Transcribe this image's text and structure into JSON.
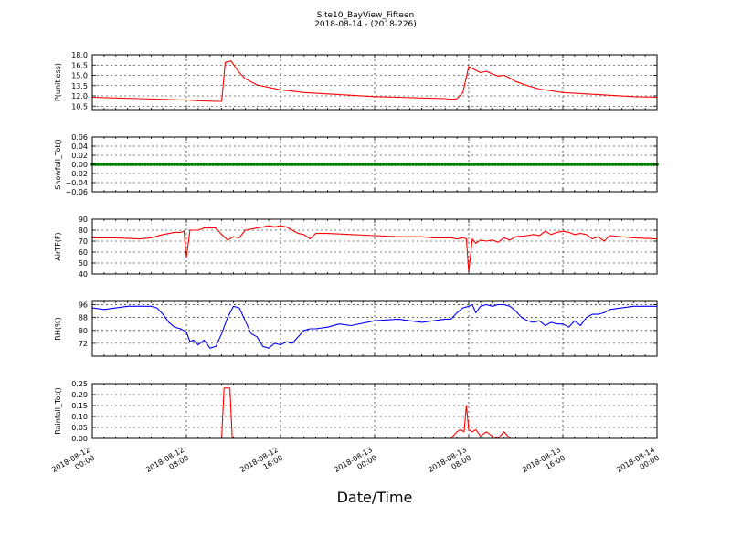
{
  "figure": {
    "title": "Site10_BayView_Fifteen",
    "subtitle": "2018-08-14 - (2018-226)",
    "xlabel": "Date/Time"
  },
  "chart_data": {
    "type": "line",
    "x_axis": {
      "start": "2018-08-12 00:00",
      "end": "2018-08-14 00:00",
      "range_hours": [
        0,
        48
      ],
      "ticks": [
        {
          "hour": 0,
          "label": [
            "2018-08-12",
            "00:00"
          ]
        },
        {
          "hour": 8,
          "label": [
            "2018-08-12",
            "08:00"
          ]
        },
        {
          "hour": 16,
          "label": [
            "2018-08-12",
            "16:00"
          ]
        },
        {
          "hour": 24,
          "label": [
            "2018-08-13",
            "00:00"
          ]
        },
        {
          "hour": 32,
          "label": [
            "2018-08-13",
            "08:00"
          ]
        },
        {
          "hour": 40,
          "label": [
            "2018-08-13",
            "16:00"
          ]
        },
        {
          "hour": 48,
          "label": [
            "2018-08-14",
            "00:00"
          ]
        }
      ]
    },
    "grid": true,
    "panels": [
      {
        "ylabel": "P(unitless)",
        "ylim": [
          10.0,
          18.0
        ],
        "yticks": [
          10.5,
          12.0,
          13.5,
          15.0,
          16.5,
          18.0
        ],
        "ytick_labels": [
          "10.5",
          "12.0",
          "13.5",
          "15.0",
          "16.5",
          "18.0"
        ],
        "color": "#ff0000",
        "series": [
          {
            "x": [
              0,
              2,
              4,
              6,
              8,
              9,
              10.5,
              11,
              11.3,
              11.8,
              12.4,
              13,
              14,
              16,
              18,
              20,
              22,
              24,
              26,
              28,
              30,
              30.5,
              31,
              31.5,
              32,
              32.3,
              33,
              33.5,
              34,
              34.5,
              35,
              35.5,
              36,
              37,
              38,
              40,
              42,
              44,
              46,
              48
            ],
            "y": [
              11.8,
              11.7,
              11.6,
              11.5,
              11.4,
              11.3,
              11.2,
              11.2,
              16.9,
              17.1,
              15.6,
              14.5,
              13.6,
              12.9,
              12.5,
              12.3,
              12.1,
              11.9,
              11.8,
              11.7,
              11.6,
              11.5,
              11.6,
              12.5,
              16.3,
              16.0,
              15.4,
              15.6,
              15.2,
              14.9,
              15.0,
              14.6,
              14.1,
              13.5,
              13.0,
              12.5,
              12.3,
              12.1,
              11.9,
              11.8
            ]
          }
        ]
      },
      {
        "ylabel": "Snowfall_Tot()",
        "ylim": [
          -0.06,
          0.06
        ],
        "yticks": [
          -0.06,
          -0.04,
          -0.02,
          0.0,
          0.02,
          0.04,
          0.06
        ],
        "ytick_labels": [
          "−0.06",
          "−0.04",
          "−0.02",
          "0.00",
          "0.02",
          "0.04",
          "0.06"
        ],
        "color": "#008000",
        "constant_value": 0.0
      },
      {
        "ylabel": "AirTF(F)",
        "ylim": [
          40,
          90
        ],
        "yticks": [
          40,
          50,
          60,
          70,
          80,
          90
        ],
        "ytick_labels": [
          "40",
          "50",
          "60",
          "70",
          "80",
          "90"
        ],
        "color": "#ff0000",
        "series": [
          {
            "x": [
              0,
              2,
              4,
              5,
              6,
              7,
              7.5,
              7.8,
              8.0,
              8.3,
              8.7,
              9,
              9.5,
              10,
              10.5,
              11,
              11.5,
              12,
              12.5,
              13,
              13.5,
              14,
              14.5,
              15,
              15.5,
              16,
              16.5,
              17,
              17.5,
              18,
              18.5,
              19,
              20,
              22,
              24,
              26,
              28,
              29,
              30,
              30.5,
              31,
              31.5,
              31.8,
              32.0,
              32.3,
              32.6,
              33,
              33.5,
              34,
              34.5,
              35,
              35.5,
              36,
              37,
              37.5,
              38,
              38.5,
              39,
              39.5,
              40,
              40.5,
              41,
              41.5,
              42,
              42.5,
              43,
              43.5,
              44,
              46,
              48
            ],
            "y": [
              73,
              73,
              72,
              73,
              76,
              78,
              78,
              79,
              55,
              80,
              80,
              80,
              82,
              82,
              82,
              76,
              71,
              74,
              73,
              80,
              81,
              82,
              83,
              84,
              83,
              84,
              83,
              80,
              77,
              76,
              72,
              77,
              77,
              76,
              75,
              74,
              74,
              73,
              73,
              73,
              72,
              73,
              72,
              42,
              72,
              68,
              71,
              70,
              71,
              69,
              73,
              71,
              74,
              75,
              76,
              75,
              79,
              76,
              78,
              79,
              78,
              76,
              77,
              76,
              72,
              74,
              70,
              75,
              73,
              72
            ]
          }
        ]
      },
      {
        "ylabel": "RH(%)",
        "ylim": [
          64,
          98
        ],
        "yticks": [
          72,
          80,
          88,
          96
        ],
        "ytick_labels": [
          "72",
          "80",
          "88",
          "96"
        ],
        "color": "#0000ff",
        "series": [
          {
            "x": [
              0,
              1,
              2,
              3,
              4,
              4.5,
              5,
              5.5,
              6,
              6.5,
              7,
              7.5,
              8,
              8.3,
              8.6,
              9,
              9.5,
              10,
              10.5,
              11,
              11.5,
              12,
              12.5,
              13,
              13.5,
              14,
              14.5,
              15,
              15.5,
              16,
              16.5,
              17,
              17.5,
              18,
              18.5,
              19,
              20,
              21,
              22,
              24,
              26,
              28,
              29,
              30,
              30.5,
              31,
              31.5,
              32,
              32.3,
              32.6,
              33,
              33.5,
              34,
              34.5,
              35,
              35.5,
              36,
              36.5,
              37,
              37.5,
              38,
              38.5,
              39,
              39.5,
              40,
              40.5,
              41,
              41.5,
              42,
              42.5,
              43,
              43.5,
              44,
              45,
              46,
              47,
              48
            ],
            "y": [
              94,
              93,
              94,
              95,
              95,
              95,
              95,
              94,
              90,
              85,
              82,
              81,
              79,
              73,
              74,
              71,
              74,
              69,
              70,
              78,
              88,
              95,
              94,
              86,
              78,
              76,
              70,
              69,
              72,
              71,
              73,
              72,
              76,
              80,
              81,
              81,
              82,
              84,
              83,
              86,
              87,
              85,
              86,
              87,
              87,
              91,
              94,
              95,
              96,
              91,
              95,
              96,
              95,
              96,
              96,
              95,
              92,
              88,
              86,
              85,
              86,
              83,
              85,
              84,
              84,
              82,
              86,
              83,
              88,
              90,
              90,
              91,
              93,
              94,
              95,
              95,
              95
            ]
          }
        ]
      },
      {
        "ylabel": "Rainfall_Tot()",
        "ylim": [
          0.0,
          0.25
        ],
        "yticks": [
          0.0,
          0.05,
          0.1,
          0.15,
          0.2,
          0.25
        ],
        "ytick_labels": [
          "0.00",
          "0.05",
          "0.10",
          "0.15",
          "0.20",
          "0.25"
        ],
        "color": "#ff0000",
        "series": [
          {
            "x": [
              0,
              10.5,
              11.0,
              11.2,
              11.7,
              11.9,
              12.1,
              30,
              30.5,
              31,
              31.3,
              31.6,
              31.8,
              32.0,
              32.3,
              32.6,
              33,
              33.5,
              34,
              34.5,
              35,
              35.5,
              48
            ],
            "y": [
              0,
              0,
              0,
              0.23,
              0.23,
              0,
              0,
              0,
              0,
              0.03,
              0.04,
              0.03,
              0.15,
              0.04,
              0.03,
              0.04,
              0.01,
              0.03,
              0.01,
              0,
              0.03,
              0,
              0
            ]
          }
        ]
      }
    ]
  }
}
